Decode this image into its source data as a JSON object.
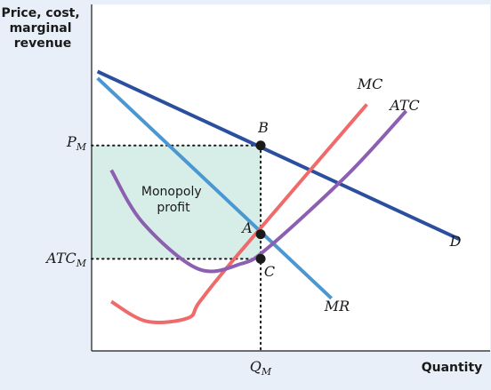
{
  "chart_data": {
    "type": "line",
    "ylabel": [
      "Price, cost,",
      "marginal",
      "revenue"
    ],
    "xlabel": "Quantity",
    "xlim": [
      0,
      10
    ],
    "ylim": [
      0,
      10
    ],
    "ticks": {
      "y": [
        {
          "key": "pm",
          "main": "P",
          "sub": "M",
          "value": 6.25
        },
        {
          "key": "atcm",
          "main": "ATC",
          "sub": "M",
          "value": 2.8
        }
      ],
      "x": [
        {
          "key": "qm",
          "main": "Q",
          "sub": "M",
          "value": 4.3
        }
      ]
    },
    "series": [
      {
        "name": "D",
        "color": "#2b4f9e",
        "points": [
          [
            0.15,
            8.5
          ],
          [
            9.35,
            3.4
          ]
        ]
      },
      {
        "name": "MR",
        "color": "#4a97d2",
        "points": [
          [
            0.15,
            8.3
          ],
          [
            6.1,
            1.6
          ]
        ]
      },
      {
        "name": "MC",
        "color": "#ef6b6b",
        "points": [
          [
            0.5,
            1.5
          ],
          [
            1.4,
            0.9
          ],
          [
            2.45,
            1.0
          ],
          [
            2.75,
            1.5
          ],
          [
            3.7,
            2.9
          ],
          [
            7.0,
            7.5
          ]
        ]
      },
      {
        "name": "ATC",
        "color": "#8d5fb0",
        "points": [
          [
            0.5,
            5.5
          ],
          [
            1.3,
            3.9
          ],
          [
            2.7,
            2.5
          ],
          [
            3.8,
            2.65
          ],
          [
            4.5,
            3.15
          ],
          [
            6.5,
            5.35
          ],
          [
            8.0,
            7.3
          ]
        ]
      }
    ],
    "points": [
      {
        "name": "B",
        "x": 4.3,
        "y": 6.25
      },
      {
        "name": "A",
        "x": 4.3,
        "y": 3.55
      },
      {
        "name": "C",
        "x": 4.3,
        "y": 2.8
      }
    ],
    "shaded_region": {
      "label": [
        "Monopoly",
        "profit"
      ],
      "color": "#d7eee8",
      "x": [
        0,
        4.3
      ],
      "y": [
        2.8,
        6.25
      ]
    },
    "grid": false
  }
}
